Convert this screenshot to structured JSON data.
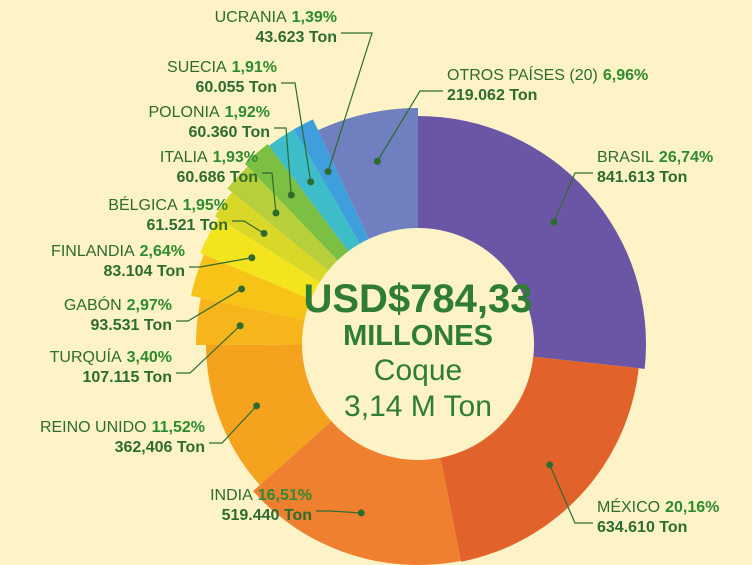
{
  "chart_data": {
    "type": "donut",
    "center_texts": [
      "USD$784,33",
      "MILLONES",
      "Coque",
      "3,14 M Ton"
    ],
    "categories": [
      "BRASIL",
      "MÉXICO",
      "INDIA",
      "REINO UNIDO",
      "TURQUÍA",
      "GABÓN",
      "FINLANDIA",
      "BÉLGICA",
      "ITALIA",
      "POLONIA",
      "SUECIA",
      "UCRANIA",
      "OTROS PAÍSES (20)"
    ],
    "values": [
      26.74,
      20.16,
      16.51,
      11.52,
      3.4,
      2.97,
      2.64,
      1.95,
      1.93,
      1.92,
      1.91,
      1.39,
      6.96
    ],
    "value_labels": [
      "26,74%",
      "20,16%",
      "16,51%",
      "11,52%",
      "3,40%",
      "2,97%",
      "2,64%",
      "1,95%",
      "1,93%",
      "1,92%",
      "1,91%",
      "1,39%",
      "6,96%"
    ],
    "ton_labels": [
      "841.613 Ton",
      "634.610 Ton",
      "519.440 Ton",
      "362,406 Ton",
      "107.115 Ton",
      "93.531 Ton",
      "83.104 Ton",
      "61.521 Ton",
      "60.686 Ton",
      "60.360 Ton",
      "60.055 Ton",
      "43.623 Ton",
      "219.062 Ton"
    ],
    "colors": [
      "#6a56a5",
      "#e2622b",
      "#ef8030",
      "#f5a21e",
      "#f6b51b",
      "#f8c317",
      "#f4e41e",
      "#d9d829",
      "#b7cf3a",
      "#7bbf43",
      "#3dbdc8",
      "#3f9fdc",
      "#6f7fbf"
    ]
  }
}
